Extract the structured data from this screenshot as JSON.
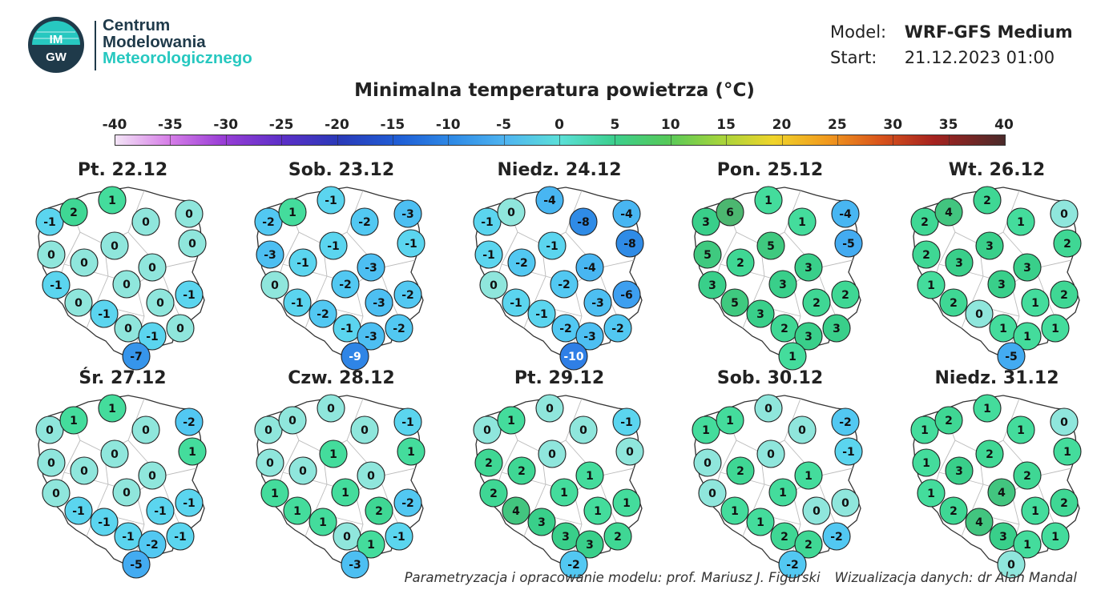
{
  "header": {
    "logo_text": "IMGW",
    "brand_line1": "Centrum",
    "brand_line2": "Modelowania",
    "brand_line3": "Meteorologicznego",
    "model_label": "Model:",
    "model_value": "WRF-GFS Medium",
    "start_label": "Start:",
    "start_value": "21.12.2023 01:00"
  },
  "title": "Minimalna temperatura powietrza (°C)",
  "colorbar": {
    "ticks": [
      "-40",
      "-35",
      "-30",
      "-25",
      "-20",
      "-15",
      "-10",
      "-5",
      "0",
      "5",
      "10",
      "15",
      "20",
      "25",
      "30",
      "35",
      "40"
    ],
    "min": -40,
    "max": 40
  },
  "panels": [
    {
      "label": "Pt. 22.12",
      "values": [
        -1,
        2,
        1,
        0,
        0,
        0,
        0,
        0,
        0,
        0,
        -1,
        0,
        0,
        0,
        -1,
        -1,
        0,
        -1,
        0,
        -7
      ]
    },
    {
      "label": "Sob. 23.12",
      "values": [
        -2,
        1,
        -1,
        -2,
        -3,
        -1,
        -3,
        -1,
        -1,
        -3,
        0,
        -2,
        -1,
        -3,
        -2,
        -2,
        -1,
        -3,
        -2,
        -9
      ]
    },
    {
      "label": "Niedz. 24.12",
      "values": [
        -1,
        0,
        -4,
        -8,
        -4,
        -8,
        -1,
        -2,
        -1,
        -4,
        0,
        -2,
        -1,
        -3,
        -6,
        -1,
        -2,
        -3,
        -2,
        -10
      ]
    },
    {
      "label": "Pon. 25.12",
      "values": [
        3,
        6,
        1,
        1,
        -4,
        -5,
        5,
        2,
        5,
        3,
        3,
        3,
        5,
        2,
        2,
        3,
        2,
        3,
        3,
        1
      ]
    },
    {
      "label": "Wt. 26.12",
      "values": [
        2,
        4,
        2,
        1,
        0,
        2,
        2,
        3,
        3,
        3,
        1,
        3,
        2,
        1,
        2,
        0,
        1,
        1,
        1,
        -5
      ]
    },
    {
      "label": "Śr. 27.12",
      "values": [
        0,
        1,
        1,
        0,
        -2,
        1,
        0,
        0,
        0,
        0,
        0,
        0,
        -1,
        -1,
        -1,
        -1,
        -1,
        -2,
        -1,
        -5
      ]
    },
    {
      "label": "Czw. 28.12",
      "values": [
        0,
        0,
        0,
        0,
        -1,
        1,
        0,
        0,
        1,
        0,
        1,
        1,
        1,
        2,
        -2,
        1,
        0,
        1,
        -1,
        -3
      ]
    },
    {
      "label": "Pt. 29.12",
      "values": [
        0,
        1,
        0,
        0,
        -1,
        0,
        2,
        2,
        0,
        1,
        2,
        1,
        4,
        1,
        1,
        3,
        3,
        3,
        2,
        -2
      ]
    },
    {
      "label": "Sob. 30.12",
      "values": [
        1,
        1,
        0,
        0,
        -2,
        -1,
        0,
        2,
        0,
        1,
        0,
        1,
        1,
        0,
        0,
        1,
        2,
        2,
        -2,
        -2
      ]
    },
    {
      "label": "Niedz. 31.12",
      "values": [
        1,
        2,
        1,
        1,
        0,
        1,
        1,
        3,
        2,
        2,
        1,
        4,
        2,
        1,
        2,
        4,
        3,
        1,
        1,
        0
      ]
    }
  ],
  "credits": {
    "left": "Parametryzacja i opracowanie modelu: prof. Mariusz J. Figurski",
    "right": "Wizualizacja danych: dr Alan Mandal"
  }
}
